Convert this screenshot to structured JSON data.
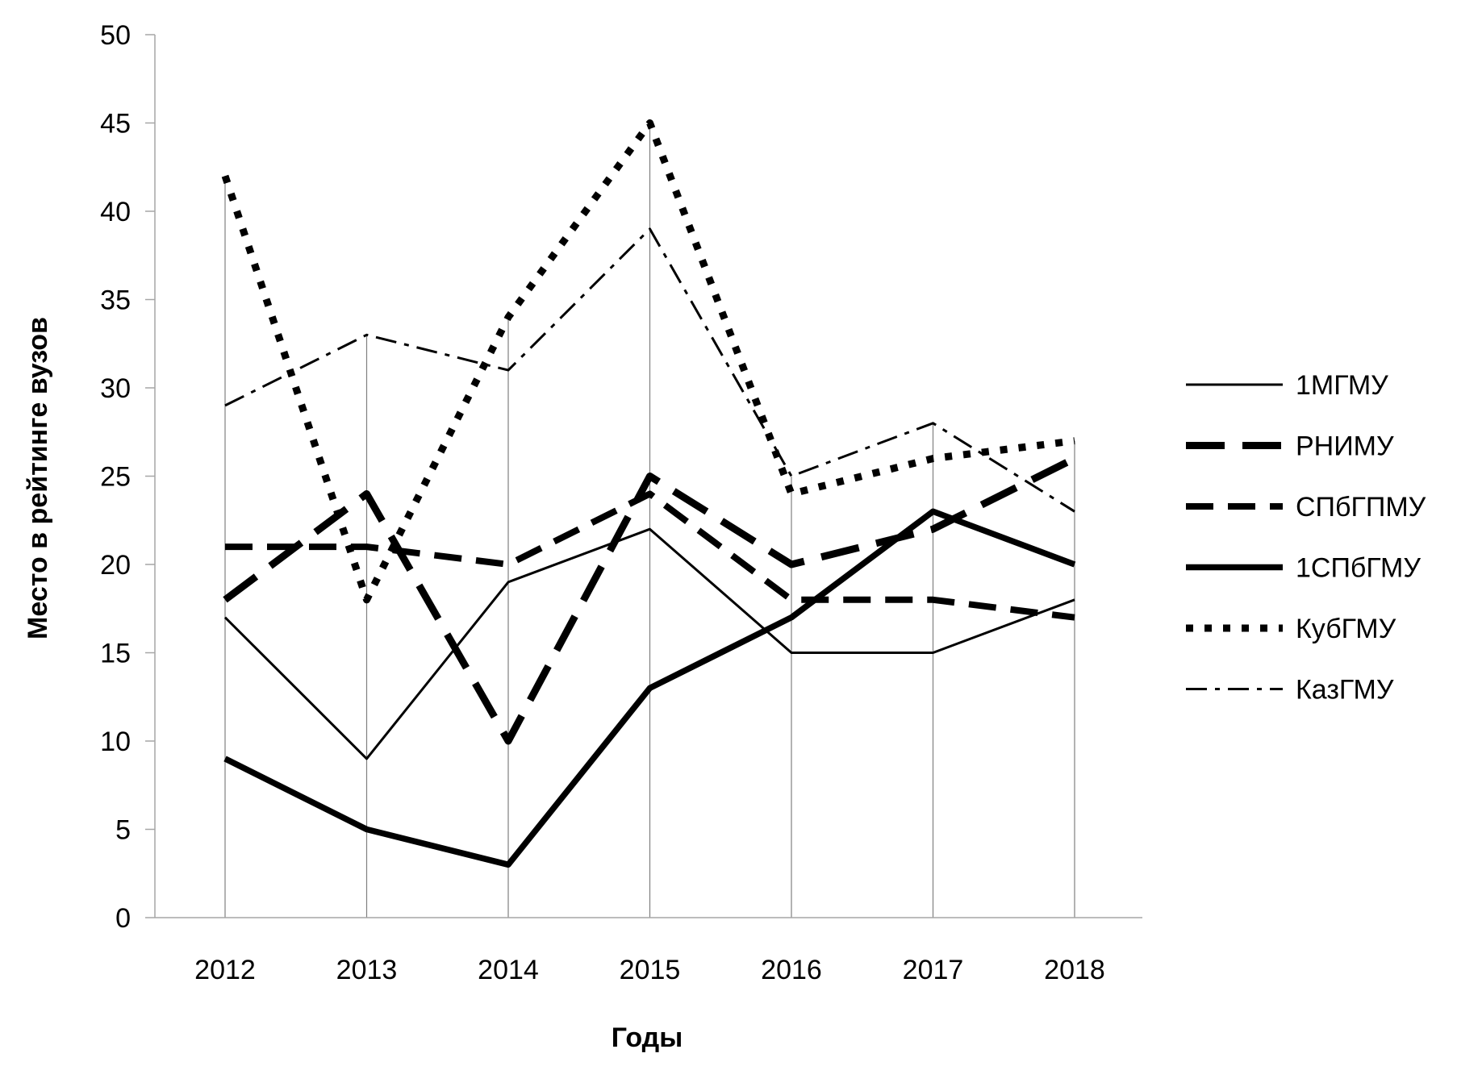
{
  "chart_data": {
    "type": "line",
    "title": "",
    "xlabel": "Годы",
    "ylabel": "Место в рейтинге вузов",
    "categories": [
      "2012",
      "2013",
      "2014",
      "2015",
      "2016",
      "2017",
      "2018"
    ],
    "ylim": [
      0,
      50
    ],
    "yticks": [
      "0",
      "5",
      "10",
      "15",
      "20",
      "25",
      "30",
      "35",
      "40",
      "45",
      "50"
    ],
    "legend_position": "right",
    "drop_lines": true,
    "series": [
      {
        "name": "1МГМУ",
        "values": [
          17,
          9,
          19,
          22,
          15,
          15,
          18
        ],
        "style": "solid-thin"
      },
      {
        "name": "РНИМУ",
        "values": [
          18,
          24,
          10,
          25,
          20,
          22,
          26
        ],
        "style": "long-dash"
      },
      {
        "name": "СПбГПМУ",
        "values": [
          21,
          21,
          20,
          24,
          18,
          18,
          17
        ],
        "style": "dash"
      },
      {
        "name": "1СПбГМУ",
        "values": [
          9,
          5,
          3,
          13,
          17,
          23,
          20
        ],
        "style": "solid-thick"
      },
      {
        "name": "КубГМУ",
        "values": [
          42,
          18,
          34,
          45,
          24,
          26,
          27
        ],
        "style": "dot"
      },
      {
        "name": "КазГМУ",
        "values": [
          29,
          33,
          31,
          39,
          25,
          28,
          23
        ],
        "style": "dash-dot"
      }
    ],
    "colors": {
      "line": "#000000",
      "axis": "#a6a6a6",
      "background": "#ffffff"
    }
  }
}
